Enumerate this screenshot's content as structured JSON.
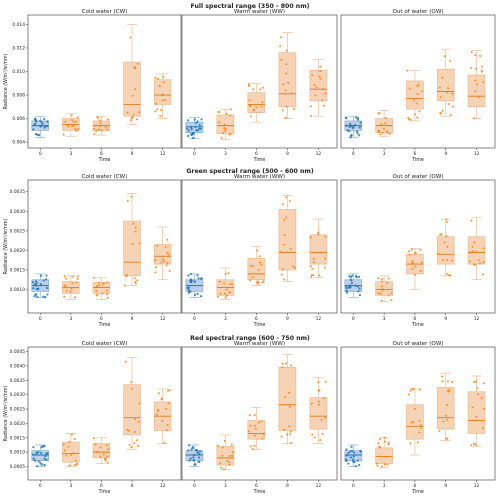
{
  "figure": {
    "time_ticks": [
      "0",
      "3",
      "6",
      "9",
      "12"
    ],
    "x_label": "Time",
    "y_label": "Radiance (W/m²/sr/nm)",
    "colors": {
      "baseline": "#1f77b4",
      "treatment": "#ff7f0e",
      "box_fill": "#f5cba7",
      "median": "#e07b1f"
    }
  },
  "chart_data": [
    {
      "type": "box",
      "row_title": "Full spectral range (350 - 800 nm)",
      "ylim": [
        0.0035,
        0.0148
      ],
      "yticks": [
        0.004,
        0.006,
        0.008,
        0.01,
        0.012,
        0.014
      ],
      "ytick_labels": [
        "0.004",
        "0.006",
        "0.008",
        "0.010",
        "0.012",
        "0.014"
      ],
      "panels": [
        {
          "title": "Cold water (CW)",
          "boxes": [
            {
              "x": "0",
              "q1": 0.005,
              "median": 0.0054,
              "q3": 0.0058,
              "min": 0.0044,
              "max": 0.0062
            },
            {
              "x": "3",
              "q1": 0.005,
              "median": 0.0055,
              "q3": 0.006,
              "min": 0.0045,
              "max": 0.0064
            },
            {
              "x": "6",
              "q1": 0.005,
              "median": 0.0054,
              "q3": 0.0058,
              "min": 0.0046,
              "max": 0.0062
            },
            {
              "x": "9",
              "q1": 0.0062,
              "median": 0.0072,
              "q3": 0.0108,
              "min": 0.0055,
              "max": 0.014
            },
            {
              "x": "12",
              "q1": 0.0072,
              "median": 0.008,
              "q3": 0.0093,
              "min": 0.006,
              "max": 0.0098
            }
          ]
        },
        {
          "title": "Warm water (WW)",
          "boxes": [
            {
              "x": "0",
              "q1": 0.0048,
              "median": 0.0053,
              "q3": 0.0057,
              "min": 0.0043,
              "max": 0.0061
            },
            {
              "x": "3",
              "q1": 0.0047,
              "median": 0.0054,
              "q3": 0.0063,
              "min": 0.0042,
              "max": 0.0068
            },
            {
              "x": "6",
              "q1": 0.0065,
              "median": 0.0072,
              "q3": 0.0082,
              "min": 0.0057,
              "max": 0.009
            },
            {
              "x": "9",
              "q1": 0.007,
              "median": 0.0081,
              "q3": 0.0116,
              "min": 0.006,
              "max": 0.0133
            },
            {
              "x": "12",
              "q1": 0.0075,
              "median": 0.0085,
              "q3": 0.0101,
              "min": 0.0062,
              "max": 0.011
            }
          ]
        },
        {
          "title": "Out of water (OW)",
          "boxes": [
            {
              "x": "0",
              "q1": 0.005,
              "median": 0.0054,
              "q3": 0.0058,
              "min": 0.0044,
              "max": 0.0062
            },
            {
              "x": "3",
              "q1": 0.0048,
              "median": 0.0054,
              "q3": 0.006,
              "min": 0.0045,
              "max": 0.0067
            },
            {
              "x": "6",
              "q1": 0.0068,
              "median": 0.0077,
              "q3": 0.0092,
              "min": 0.0058,
              "max": 0.0101
            },
            {
              "x": "9",
              "q1": 0.0075,
              "median": 0.0083,
              "q3": 0.0102,
              "min": 0.0062,
              "max": 0.0119
            },
            {
              "x": "12",
              "q1": 0.007,
              "median": 0.0079,
              "q3": 0.0097,
              "min": 0.006,
              "max": 0.0118
            }
          ]
        }
      ]
    },
    {
      "type": "box",
      "row_title": "Green spectral range (500 - 600 nm)",
      "ylim": [
        0.0004,
        0.0038
      ],
      "yticks": [
        0.001,
        0.0015,
        0.002,
        0.0025,
        0.003,
        0.0035
      ],
      "ytick_labels": [
        "0.0010",
        "0.0015",
        "0.0020",
        "0.0025",
        "0.0030",
        "0.0035"
      ],
      "panels": [
        {
          "title": "Cold water (CW)",
          "boxes": [
            {
              "x": "0",
              "q1": 0.00095,
              "median": 0.0011,
              "q3": 0.00125,
              "min": 0.0008,
              "max": 0.0014
            },
            {
              "x": "3",
              "q1": 0.0009,
              "median": 0.00105,
              "q3": 0.0012,
              "min": 0.00075,
              "max": 0.00135
            },
            {
              "x": "6",
              "q1": 0.0009,
              "median": 0.00105,
              "q3": 0.00118,
              "min": 0.00075,
              "max": 0.0013
            },
            {
              "x": "9",
              "q1": 0.00135,
              "median": 0.0017,
              "q3": 0.00275,
              "min": 0.0011,
              "max": 0.00345
            },
            {
              "x": "12",
              "q1": 0.00165,
              "median": 0.00185,
              "q3": 0.00215,
              "min": 0.00125,
              "max": 0.0026
            }
          ]
        },
        {
          "title": "Warm water (WW)",
          "boxes": [
            {
              "x": "0",
              "q1": 0.00095,
              "median": 0.0011,
              "q3": 0.00125,
              "min": 0.0008,
              "max": 0.0014
            },
            {
              "x": "3",
              "q1": 0.00085,
              "median": 0.00105,
              "q3": 0.00125,
              "min": 0.00075,
              "max": 0.00155
            },
            {
              "x": "6",
              "q1": 0.00125,
              "median": 0.0014,
              "q3": 0.0018,
              "min": 0.0011,
              "max": 0.0021
            },
            {
              "x": "9",
              "q1": 0.0015,
              "median": 0.00195,
              "q3": 0.00305,
              "min": 0.0012,
              "max": 0.0034
            },
            {
              "x": "12",
              "q1": 0.00165,
              "median": 0.00195,
              "q3": 0.0024,
              "min": 0.0013,
              "max": 0.0028
            }
          ]
        },
        {
          "title": "Out of water (OW)",
          "boxes": [
            {
              "x": "0",
              "q1": 0.00095,
              "median": 0.0011,
              "q3": 0.00125,
              "min": 0.0008,
              "max": 0.0014
            },
            {
              "x": "3",
              "q1": 0.00085,
              "median": 0.001,
              "q3": 0.0012,
              "min": 0.0007,
              "max": 0.00135
            },
            {
              "x": "6",
              "q1": 0.0014,
              "median": 0.00165,
              "q3": 0.0019,
              "min": 0.001,
              "max": 0.00205
            },
            {
              "x": "9",
              "q1": 0.00165,
              "median": 0.0019,
              "q3": 0.00235,
              "min": 0.00135,
              "max": 0.0028
            },
            {
              "x": "12",
              "q1": 0.00165,
              "median": 0.00195,
              "q3": 0.00235,
              "min": 0.00125,
              "max": 0.00285
            }
          ]
        }
      ]
    },
    {
      "type": "box",
      "row_title": "Red spectral range (600 - 750 nm)",
      "ylim": [
        3e-05,
        0.00466
      ],
      "yticks": [
        0.0005,
        0.001,
        0.0015,
        0.002,
        0.0025,
        0.003,
        0.0035,
        0.004,
        0.0045
      ],
      "ytick_labels": [
        "0.0005",
        "0.0010",
        "0.0015",
        "0.0020",
        "0.0025",
        "0.0030",
        "0.0035",
        "0.0040",
        "0.0045"
      ],
      "panels": [
        {
          "title": "Cold water (CW)",
          "boxes": [
            {
              "x": "0",
              "q1": 0.0007,
              "median": 0.0009,
              "q3": 0.00105,
              "min": 0.0005,
              "max": 0.00125
            },
            {
              "x": "3",
              "q1": 0.00065,
              "median": 0.00095,
              "q3": 0.00135,
              "min": 0.0005,
              "max": 0.00165
            },
            {
              "x": "6",
              "q1": 0.0008,
              "median": 0.001,
              "q3": 0.0013,
              "min": 0.0006,
              "max": 0.0015
            },
            {
              "x": "9",
              "q1": 0.0016,
              "median": 0.0022,
              "q3": 0.00335,
              "min": 0.0011,
              "max": 0.0043
            },
            {
              "x": "12",
              "q1": 0.00175,
              "median": 0.00225,
              "q3": 0.00275,
              "min": 0.0013,
              "max": 0.0032
            }
          ]
        },
        {
          "title": "Warm water (WW)",
          "boxes": [
            {
              "x": "0",
              "q1": 0.0007,
              "median": 0.0009,
              "q3": 0.00105,
              "min": 0.0005,
              "max": 0.00125
            },
            {
              "x": "3",
              "q1": 0.00055,
              "median": 0.0008,
              "q3": 0.0012,
              "min": 0.0004,
              "max": 0.0016
            },
            {
              "x": "6",
              "q1": 0.00145,
              "median": 0.00165,
              "q3": 0.0021,
              "min": 0.0011,
              "max": 0.00255
            },
            {
              "x": "9",
              "q1": 0.00175,
              "median": 0.00265,
              "q3": 0.00395,
              "min": 0.0013,
              "max": 0.0044
            },
            {
              "x": "12",
              "q1": 0.0018,
              "median": 0.00225,
              "q3": 0.0029,
              "min": 0.0013,
              "max": 0.0036
            }
          ]
        },
        {
          "title": "Out of water (OW)",
          "boxes": [
            {
              "x": "0",
              "q1": 0.0007,
              "median": 0.0009,
              "q3": 0.00105,
              "min": 0.0005,
              "max": 0.00125
            },
            {
              "x": "3",
              "q1": 0.0006,
              "median": 0.00085,
              "q3": 0.00115,
              "min": 0.00045,
              "max": 0.0015
            },
            {
              "x": "6",
              "q1": 0.00145,
              "median": 0.0019,
              "q3": 0.00265,
              "min": 0.0009,
              "max": 0.0032
            },
            {
              "x": "9",
              "q1": 0.0018,
              "median": 0.0022,
              "q3": 0.00325,
              "min": 0.0014,
              "max": 0.00375
            },
            {
              "x": "12",
              "q1": 0.00165,
              "median": 0.0021,
              "q3": 0.0031,
              "min": 0.0012,
              "max": 0.00365
            }
          ]
        }
      ]
    }
  ]
}
